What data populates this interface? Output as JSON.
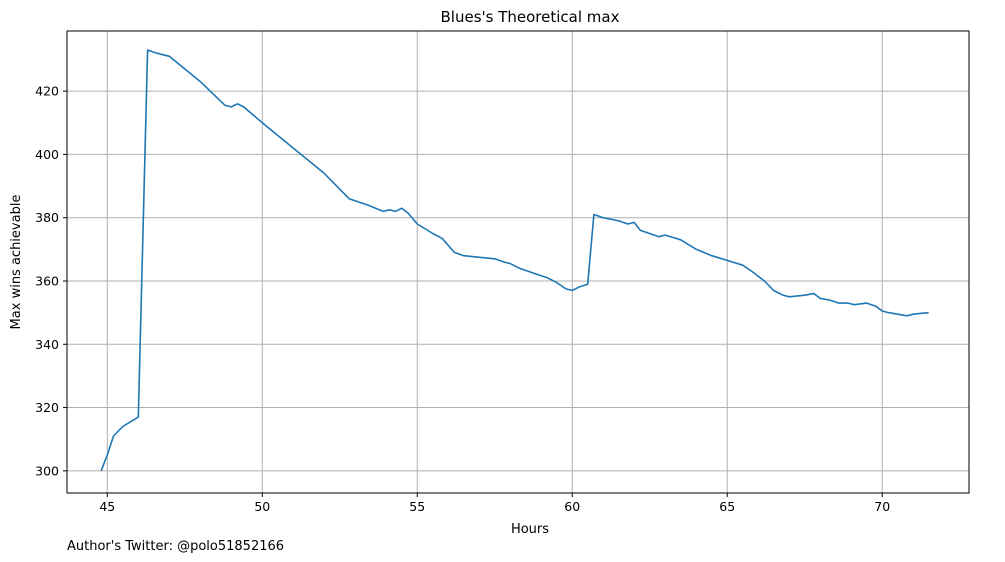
{
  "chart_data": {
    "type": "line",
    "title": "Blues's Theoretical max",
    "xlabel": "Hours",
    "ylabel": "Max wins achievable",
    "xlim": [
      43.7,
      72.8
    ],
    "ylim": [
      293,
      439
    ],
    "xticks": [
      45,
      50,
      55,
      60,
      65,
      70
    ],
    "yticks": [
      300,
      320,
      340,
      360,
      380,
      400,
      420
    ],
    "grid": true,
    "line_color": "#1f77b4",
    "series": [
      {
        "x": [
          44.8,
          45.0,
          45.2,
          45.5,
          46.0,
          46.3,
          46.6,
          47.0,
          48.0,
          48.8,
          49.0,
          49.2,
          49.4,
          50.0,
          51.0,
          52.0,
          52.8,
          53.4,
          53.9,
          54.1,
          54.3,
          54.5,
          54.7,
          55.0,
          55.5,
          55.8,
          56.2,
          56.5,
          57.0,
          57.5,
          57.8,
          58.0,
          58.3,
          58.6,
          58.9,
          59.2,
          59.5,
          59.8,
          60.0,
          60.2,
          60.5,
          60.7,
          61.0,
          61.5,
          61.8,
          62.0,
          62.2,
          62.5,
          62.8,
          63.0,
          63.5,
          64.0,
          64.5,
          65.0,
          65.5,
          65.8,
          66.2,
          66.5,
          66.8,
          67.0,
          67.5,
          67.8,
          68.0,
          68.3,
          68.6,
          68.9,
          69.1,
          69.5,
          69.8,
          70.0,
          70.2,
          70.5,
          70.8,
          71.0,
          71.5
        ],
        "y": [
          300,
          305,
          311,
          314,
          317,
          433,
          432,
          431,
          423,
          415.5,
          415,
          416,
          415,
          410,
          402,
          394,
          386,
          384,
          382,
          382.5,
          382,
          383,
          381.5,
          378,
          375,
          373.5,
          369,
          368,
          367.5,
          367,
          366,
          365.5,
          364,
          363,
          362,
          361,
          359.5,
          357.5,
          357,
          358,
          359,
          381,
          380,
          379,
          378,
          378.5,
          376,
          375,
          374,
          374.5,
          373,
          370,
          368,
          366.5,
          365,
          363,
          360,
          357,
          355.5,
          355,
          355.5,
          356,
          354.5,
          354,
          353,
          353,
          352.5,
          353,
          352,
          350.5,
          350,
          349.5,
          349,
          349.5,
          350
        ]
      }
    ]
  },
  "footer": "Author's Twitter: @polo51852166"
}
